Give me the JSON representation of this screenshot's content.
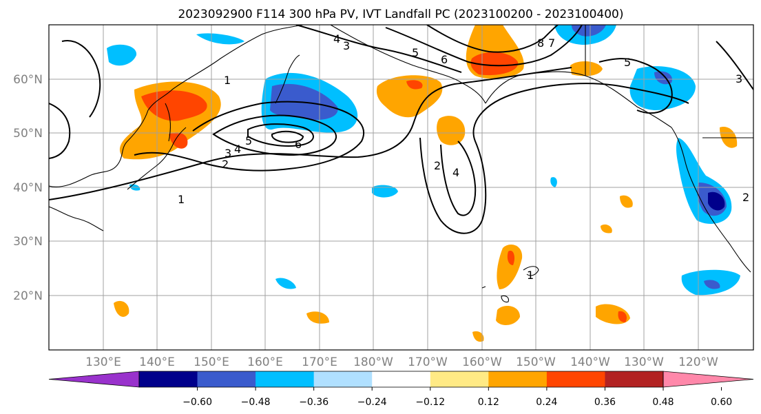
{
  "title": "2023092900 F114 300 hPa PV, IVT Landfall PC (2023100200 - 2023100400)",
  "lat_labels": [
    "60°N",
    "50°N",
    "40°N",
    "30°N",
    "20°N"
  ],
  "lon_labels": [
    "130°E",
    "140°E",
    "150°E",
    "160°E",
    "170°E",
    "180°W",
    "170°W",
    "160°W",
    "150°W",
    "140°W",
    "130°W",
    "120°W"
  ],
  "contour_labels": [
    "1",
    "1",
    "1",
    "2",
    "2",
    "3",
    "3",
    "4",
    "4",
    "4",
    "5",
    "5",
    "5",
    "6",
    "6",
    "7",
    "8",
    "2",
    "3"
  ],
  "colorbar": {
    "tick_labels": [
      "−0.60",
      "−0.48",
      "−0.36",
      "−0.24",
      "−0.12",
      "0.12",
      "0.24",
      "0.36",
      "0.48",
      "0.60"
    ],
    "colors": [
      "#9932cc",
      "#00008b",
      "#3a5bcd",
      "#00bfff",
      "#b0e0ff",
      "#ffffff",
      "#ffea85",
      "#ffa500",
      "#ff4500",
      "#b22222",
      "#ff88aa"
    ]
  },
  "shading_colors": {
    "neg_light": "#b0e0ff",
    "neg_mid": "#00bfff",
    "neg_strong": "#3a5bcd",
    "neg_max": "#00008b",
    "pos_light": "#ffea85",
    "pos_mid": "#ffa500",
    "pos_strong": "#ff4500"
  }
}
